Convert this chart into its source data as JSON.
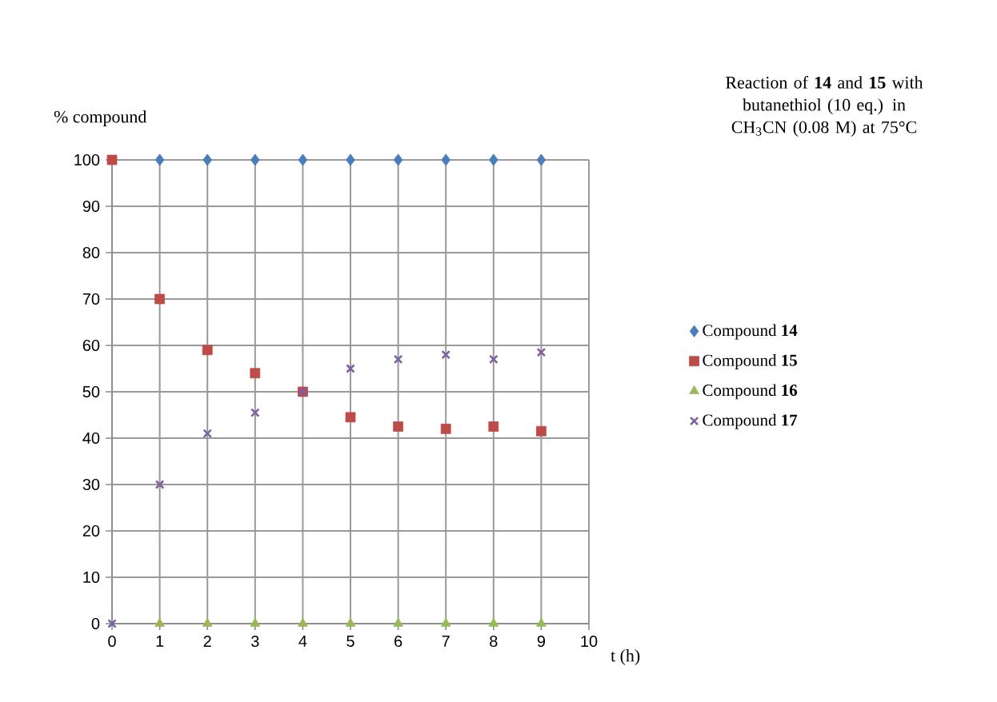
{
  "chart_data": {
    "type": "scatter",
    "title": "Reaction of **14** and **15** with butanethiol (10 eq.) in CH$_{3}$CN (0.08 M) at 75°C",
    "xlabel": "t (h)",
    "ylabel": "% compound",
    "x": [
      0,
      1,
      2,
      3,
      4,
      5,
      6,
      7,
      8,
      9
    ],
    "series": [
      {
        "name": "Compound **14**",
        "color": "#4a7ebb",
        "marker": "diamond",
        "values": [
          null,
          100,
          100,
          100,
          100,
          100,
          100,
          100,
          100,
          100
        ]
      },
      {
        "name": "Compound **15**",
        "color": "#be4b48",
        "marker": "square",
        "values": [
          100,
          70,
          59,
          54,
          50,
          44.5,
          42.5,
          42,
          42.5,
          41.5
        ]
      },
      {
        "name": "Compound **16**",
        "color": "#98b954",
        "marker": "triangle",
        "values": [
          null,
          0,
          0,
          0,
          0,
          0,
          0,
          0,
          0,
          0
        ]
      },
      {
        "name": "Compound **17**",
        "color": "#7d60a0",
        "marker": "cross",
        "values": [
          0,
          30,
          41,
          45.5,
          50,
          55,
          57,
          58,
          57,
          58.5
        ]
      }
    ],
    "xlim": [
      0,
      10
    ],
    "xticks": [
      0,
      1,
      2,
      3,
      4,
      5,
      6,
      7,
      8,
      9,
      10
    ],
    "ylim": [
      0,
      100
    ],
    "yticks": [
      0,
      10,
      20,
      30,
      40,
      50,
      60,
      70,
      80,
      90,
      100
    ],
    "grid": true,
    "legend": "right"
  }
}
